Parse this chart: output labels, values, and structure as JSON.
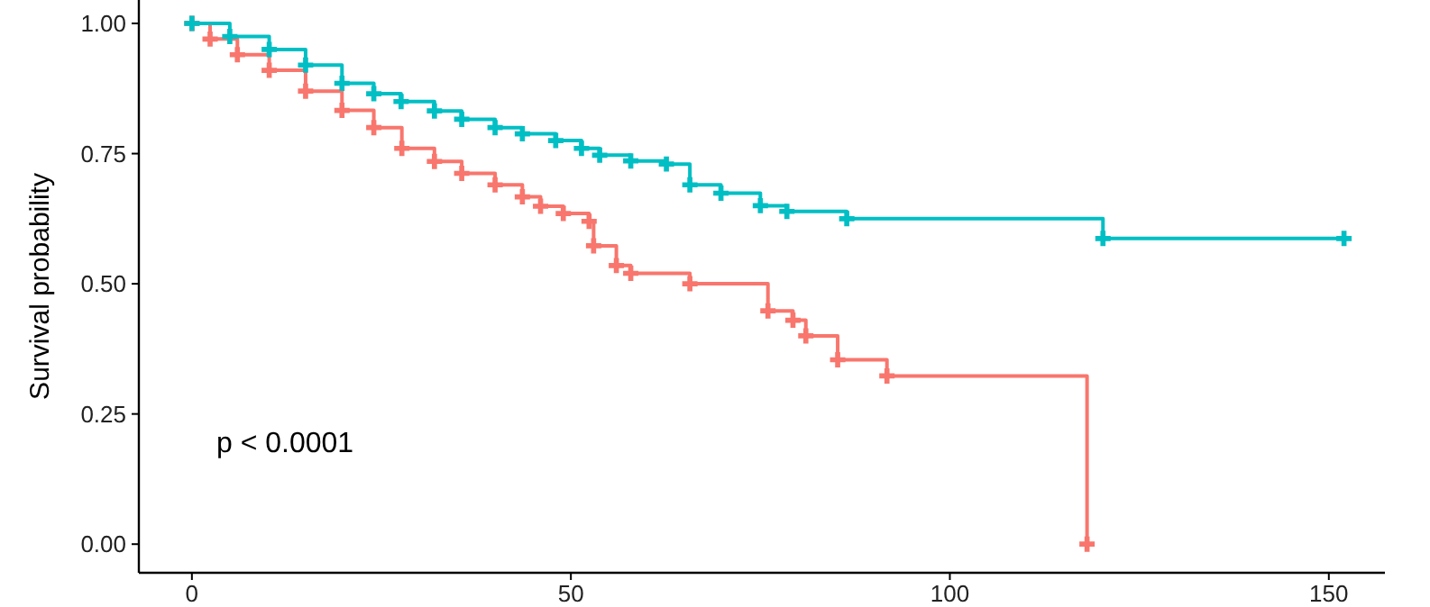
{
  "chart_data": {
    "type": "step",
    "ylabel": "Survival probability",
    "xlim": [
      -7,
      157.4
    ],
    "ylim": [
      -0.055,
      1.045
    ],
    "xticks": [
      0,
      50,
      100,
      150
    ],
    "yticks": [
      {
        "value": 0,
        "label": "0.00"
      },
      {
        "value": 0.25,
        "label": "0.25"
      },
      {
        "value": 0.5,
        "label": "0.50"
      },
      {
        "value": 0.75,
        "label": "0.75"
      },
      {
        "value": 1,
        "label": "1.00"
      }
    ],
    "grid": false,
    "marker": "cross",
    "line_style": "solid",
    "annotations": [
      "p < 0.0001"
    ],
    "series": [
      {
        "color": "#f8766d",
        "x": [
          0,
          2.4,
          6,
          10.2,
          15,
          19.8,
          24,
          27.7,
          32,
          35.6,
          40,
          43.6,
          46,
          49,
          52.4,
          53,
          56,
          57.9,
          65.7,
          76,
          79.3,
          81,
          85.2,
          91.7,
          118.1
        ],
        "values": [
          1,
          0.97,
          0.94,
          0.91,
          0.87,
          0.833,
          0.8,
          0.76,
          0.735,
          0.712,
          0.69,
          0.667,
          0.649,
          0.635,
          0.62,
          0.573,
          0.535,
          0.52,
          0.5,
          0.448,
          0.43,
          0.4,
          0.354,
          0.323,
          0
        ]
      },
      {
        "color": "#00bfc4",
        "x": [
          0,
          5,
          10.2,
          15,
          19.8,
          24,
          27.6,
          32,
          35.6,
          40,
          43.6,
          48,
          51.4,
          53.8,
          57.9,
          62.6,
          65.7,
          69.8,
          75,
          78.5,
          86.4,
          120.2,
          152
        ],
        "values": [
          1,
          0.975,
          0.95,
          0.92,
          0.885,
          0.865,
          0.85,
          0.832,
          0.816,
          0.8,
          0.788,
          0.775,
          0.76,
          0.747,
          0.736,
          0.73,
          0.69,
          0.674,
          0.65,
          0.639,
          0.625,
          0.587,
          0.587
        ]
      }
    ]
  }
}
